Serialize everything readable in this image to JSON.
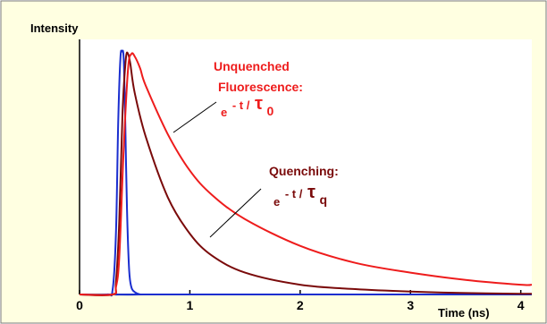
{
  "colors": {
    "panel_bg": "#ffffe1",
    "border": "#7a7a7a",
    "axis": "#000000",
    "unquenched": "#ee1c1c",
    "quenched": "#7a0a0a",
    "excitation": "#1a2ecf"
  },
  "chart_data": {
    "type": "line",
    "ylabel": "Intensity",
    "xlabel": "Time (ns)",
    "xlim": [
      0,
      4.1
    ],
    "ylim": [
      0,
      1.05
    ],
    "xticks": [
      "0",
      "1",
      "2",
      "3",
      "4"
    ],
    "grid": false,
    "series": [
      {
        "key": "excitation",
        "x": [
          0,
          0.25,
          0.3,
          0.33,
          0.35,
          0.37,
          0.385,
          0.4,
          0.415,
          0.43,
          0.45,
          0.47,
          0.5,
          0.55,
          0.6,
          4.1
        ],
        "y": [
          0,
          0,
          0.02,
          0.25,
          0.7,
          0.97,
          1.0,
          0.97,
          0.7,
          0.35,
          0.1,
          0.03,
          0.01,
          0,
          0,
          0
        ]
      },
      {
        "key": "quenched",
        "x": [
          0,
          0.3,
          0.33,
          0.36,
          0.39,
          0.42,
          0.44,
          0.46,
          0.5,
          0.6,
          0.8,
          1.0,
          1.2,
          1.5,
          2.0,
          2.5,
          3.0,
          3.5,
          4.0,
          4.1
        ],
        "y": [
          0,
          0,
          0.05,
          0.3,
          0.75,
          0.97,
          0.99,
          0.95,
          0.83,
          0.65,
          0.4,
          0.25,
          0.16,
          0.09,
          0.04,
          0.022,
          0.012,
          0.006,
          0.003,
          0.003
        ]
      },
      {
        "key": "unquenched",
        "x": [
          0,
          0.3,
          0.33,
          0.36,
          0.4,
          0.44,
          0.47,
          0.5,
          0.55,
          0.6,
          0.8,
          1.0,
          1.2,
          1.5,
          2.0,
          2.5,
          3.0,
          3.5,
          4.0,
          4.1
        ],
        "y": [
          0,
          0,
          0.03,
          0.15,
          0.6,
          0.93,
          0.99,
          0.98,
          0.93,
          0.86,
          0.66,
          0.51,
          0.41,
          0.31,
          0.2,
          0.13,
          0.09,
          0.06,
          0.04,
          0.04
        ]
      }
    ],
    "annotations": {
      "unquenched": {
        "line1": "Unquenched",
        "line2": "Fluorescence:",
        "exp_base": "e",
        "exp_power": "- t /",
        "exp_tau": "τ",
        "exp_sub": "0"
      },
      "quenched": {
        "line1": "Quenching:",
        "exp_base": "e",
        "exp_power": "- t /",
        "exp_tau": "τ",
        "exp_sub": "q"
      }
    }
  }
}
